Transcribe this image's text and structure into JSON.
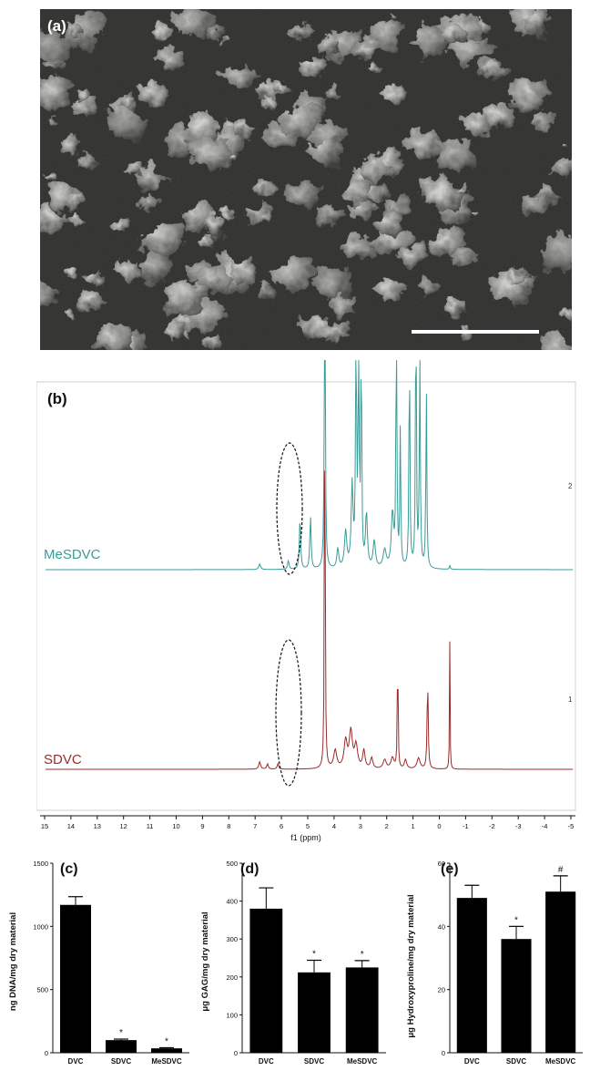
{
  "figure": {
    "panel_a": {
      "label": "(a)"
    },
    "panel_b": {
      "label": "(b)",
      "trace_labels": [
        "MeSDVC",
        "SDVC"
      ],
      "trace_colors": {
        "MeSDVC": "#3a9c98",
        "SDVC": "#9b2b2b"
      },
      "right_axis_ticks": [
        "2",
        "1"
      ],
      "xaxis_label": "f1 (ppm)",
      "x_ticks": [
        "15",
        "14",
        "13",
        "12",
        "11",
        "10",
        "9",
        "8",
        "7",
        "6",
        "5",
        "4",
        "3",
        "2",
        "1",
        "0",
        "-1",
        "-2",
        "-3",
        "-4",
        "-5"
      ]
    }
  },
  "chart_data": [
    {
      "type": "bar",
      "panel_label": "(c)",
      "categories": [
        "DVC",
        "SDVC",
        "MeSDVC"
      ],
      "values": [
        1170,
        100,
        35
      ],
      "errors": [
        65,
        8,
        5
      ],
      "annotations": [
        "",
        "*",
        "*"
      ],
      "ylabel": "ng DNA/mg dry material",
      "yticks": [
        "0",
        "500",
        "1000",
        "1500"
      ],
      "ylim": [
        0,
        1500
      ]
    },
    {
      "type": "bar",
      "panel_label": "(d)",
      "categories": [
        "DVC",
        "SDVC",
        "MeSDVC"
      ],
      "values": [
        380,
        212,
        225
      ],
      "errors": [
        55,
        32,
        18
      ],
      "annotations": [
        "",
        "*",
        "*"
      ],
      "ylabel": "μg GAG/mg dry material",
      "yticks": [
        "0",
        "100",
        "200",
        "300",
        "400",
        "500"
      ],
      "ylim": [
        0,
        500
      ]
    },
    {
      "type": "bar",
      "panel_label": "(e)",
      "categories": [
        "DVC",
        "SDVC",
        "MeSDVC"
      ],
      "values": [
        49,
        36,
        51
      ],
      "errors": [
        4,
        4,
        5
      ],
      "annotations": [
        "",
        "*",
        "#"
      ],
      "ylabel": "μg Hydroxyproline/mg dry material",
      "yticks": [
        "0",
        "20",
        "40",
        "60"
      ],
      "ylim": [
        0,
        60
      ]
    }
  ]
}
